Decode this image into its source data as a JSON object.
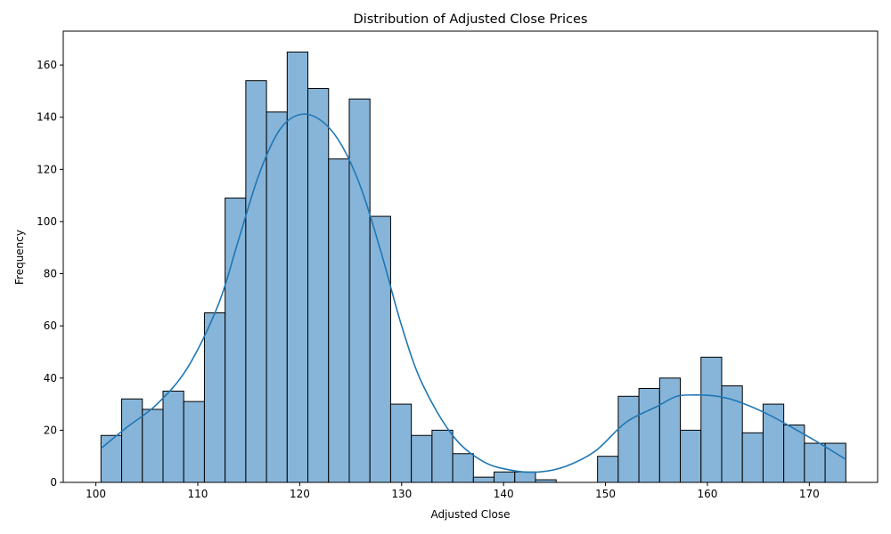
{
  "chart_data": {
    "type": "bar",
    "subtype": "histogram",
    "title": "Distribution of Adjusted Close Prices",
    "xlabel": "Adjusted Close",
    "ylabel": "Frequency",
    "xlim": [
      96.8,
      176.7
    ],
    "ylim": [
      0,
      173
    ],
    "xticks": [
      100,
      110,
      120,
      130,
      140,
      150,
      160,
      170
    ],
    "yticks": [
      0,
      20,
      40,
      60,
      80,
      100,
      120,
      140,
      160
    ],
    "bin_start": 100.5,
    "bin_width": 2.03,
    "counts": [
      18,
      32,
      28,
      35,
      31,
      65,
      109,
      154,
      142,
      165,
      151,
      124,
      147,
      102,
      30,
      18,
      20,
      11,
      2,
      4,
      4,
      1,
      0,
      0,
      10,
      33,
      36,
      40,
      20,
      48,
      37,
      19,
      30,
      22,
      15,
      15
    ],
    "kde": {
      "x": [
        100.5,
        103,
        106,
        109,
        112,
        114,
        116,
        118,
        120,
        122,
        124,
        126,
        128,
        130,
        132,
        135,
        138,
        141,
        143.5,
        146,
        149,
        152,
        155,
        157,
        159,
        161,
        163,
        166,
        169,
        171,
        173.5
      ],
      "y": [
        13,
        21,
        30,
        44,
        68,
        93,
        118,
        135,
        141,
        139,
        130,
        113,
        88,
        60,
        38,
        18,
        8,
        4.5,
        4,
        6,
        12,
        23,
        29,
        33,
        33.5,
        33,
        31,
        26,
        19.5,
        15,
        9
      ]
    },
    "colors": {
      "bar_fill": "#87b5d9",
      "bar_edge": "#000000",
      "kde_line": "#1f77b4"
    },
    "grid": false,
    "legend": "none"
  }
}
